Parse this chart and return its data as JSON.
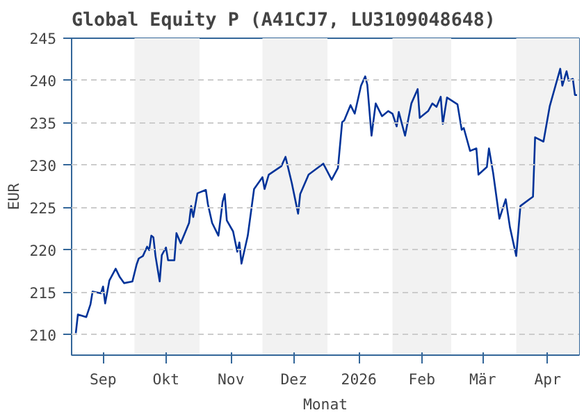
{
  "chart_data": {
    "type": "line",
    "title": "Global Equity P (A41CJ7, LU3109048648)",
    "xlabel": "Monat",
    "ylabel": "EUR",
    "x": [
      "2025-09-03",
      "2025-09-04",
      "2025-09-08",
      "2025-09-10",
      "2025-09-11",
      "2025-09-15",
      "2025-09-16",
      "2025-09-17",
      "2025-09-19",
      "2025-09-22",
      "2025-09-24",
      "2025-09-26",
      "2025-09-30",
      "2025-10-02",
      "2025-10-03",
      "2025-10-05",
      "2025-10-07",
      "2025-10-08",
      "2025-10-09",
      "2025-10-10",
      "2025-10-11",
      "2025-10-13",
      "2025-10-14",
      "2025-10-16",
      "2025-10-17",
      "2025-10-20",
      "2025-10-21",
      "2025-10-23",
      "2025-10-25",
      "2025-10-27",
      "2025-10-28",
      "2025-10-29",
      "2025-10-31",
      "2025-11-04",
      "2025-11-05",
      "2025-11-07",
      "2025-11-10",
      "2025-11-12",
      "2025-11-13",
      "2025-11-14",
      "2025-11-17",
      "2025-11-19",
      "2025-11-20",
      "2025-11-21",
      "2025-11-24",
      "2025-11-27",
      "2025-12-01",
      "2025-12-02",
      "2025-12-04",
      "2025-12-10",
      "2025-12-12",
      "2025-12-15",
      "2025-12-18",
      "2025-12-19",
      "2025-12-23",
      "2025-12-30",
      "2026-01-03",
      "2026-01-06",
      "2026-01-08",
      "2026-01-09",
      "2026-01-12",
      "2026-01-14",
      "2026-01-17",
      "2026-01-19",
      "2026-01-20",
      "2026-01-22",
      "2026-01-24",
      "2026-01-27",
      "2026-01-30",
      "2026-02-01",
      "2026-02-03",
      "2026-02-04",
      "2026-02-07",
      "2026-02-10",
      "2026-02-13",
      "2026-02-14",
      "2026-02-18",
      "2026-02-20",
      "2026-02-22",
      "2026-02-24",
      "2026-02-25",
      "2026-02-27",
      "2026-03-04",
      "2026-03-06",
      "2026-03-07",
      "2026-03-10",
      "2026-03-13",
      "2026-03-14",
      "2026-03-18",
      "2026-03-19",
      "2026-03-21",
      "2026-03-24",
      "2026-03-27",
      "2026-03-29",
      "2026-04-01",
      "2026-04-03",
      "2026-04-09",
      "2026-04-10",
      "2026-04-14",
      "2026-04-17",
      "2026-04-22",
      "2026-04-23",
      "2026-04-25",
      "2026-04-26",
      "2026-04-28",
      "2026-04-29",
      "2026-04-30"
    ],
    "series": [
      {
        "color": "#003399",
        "values": [
          210.2,
          212.4,
          212.1,
          213.6,
          215.1,
          214.9,
          215.7,
          213.7,
          216.4,
          217.8,
          216.8,
          216.1,
          216.3,
          218.3,
          219.0,
          219.3,
          220.4,
          220.0,
          221.7,
          221.5,
          219.3,
          216.3,
          219.4,
          220.3,
          218.8,
          218.8,
          222.0,
          220.8,
          222.0,
          223.2,
          225.2,
          223.9,
          226.7,
          227.1,
          225.4,
          223.2,
          221.7,
          225.7,
          226.6,
          223.5,
          222.2,
          219.8,
          220.9,
          218.4,
          221.7,
          227.2,
          228.6,
          227.2,
          228.9,
          229.9,
          231.0,
          227.9,
          224.3,
          226.6,
          228.9,
          230.2,
          228.3,
          229.7,
          235.1,
          235.3,
          237.1,
          236.1,
          239.4,
          240.5,
          239.5,
          233.5,
          237.3,
          235.8,
          236.4,
          236.1,
          234.6,
          236.3,
          233.5,
          237.3,
          239.0,
          235.6,
          236.4,
          237.3,
          236.9,
          238.1,
          234.9,
          238.0,
          237.2,
          234.2,
          234.4,
          231.7,
          232.0,
          228.9,
          229.8,
          232.0,
          229.1,
          223.7,
          226.0,
          222.7,
          219.3,
          225.2,
          226.3,
          233.3,
          232.8,
          237.0,
          241.4,
          239.4,
          241.1,
          240.0,
          240.2,
          238.3,
          238.3
        ]
      }
    ],
    "xlim": [
      "2025-09-01",
      "2026-05-01"
    ],
    "xticks": [
      {
        "value": "2025-09-16",
        "label": "Sep"
      },
      {
        "value": "2025-10-16",
        "label": "Okt"
      },
      {
        "value": "2025-11-16",
        "label": "Nov"
      },
      {
        "value": "2025-12-16",
        "label": "Dez"
      },
      {
        "value": "2026-01-16",
        "label": "2026"
      },
      {
        "value": "2026-02-15",
        "label": "Feb"
      },
      {
        "value": "2026-03-16",
        "label": "Mär"
      },
      {
        "value": "2026-04-16",
        "label": "Apr"
      }
    ],
    "ylim": [
      207.6,
      245
    ],
    "yticks": [
      210,
      215,
      220,
      225,
      230,
      235,
      240,
      245
    ],
    "bands": [
      {
        "axis": "x",
        "from": "2025-10-01",
        "to": "2025-11-01",
        "color": "#f2f2f2"
      },
      {
        "axis": "x",
        "from": "2025-12-01",
        "to": "2026-01-01",
        "color": "#f2f2f2"
      },
      {
        "axis": "x",
        "from": "2026-02-01",
        "to": "2026-03-01",
        "color": "#f2f2f2"
      },
      {
        "axis": "x",
        "from": "2026-04-01",
        "to": "2026-05-01",
        "color": "#f2f2f2"
      }
    ],
    "grid": "y",
    "line_style": "solid"
  }
}
